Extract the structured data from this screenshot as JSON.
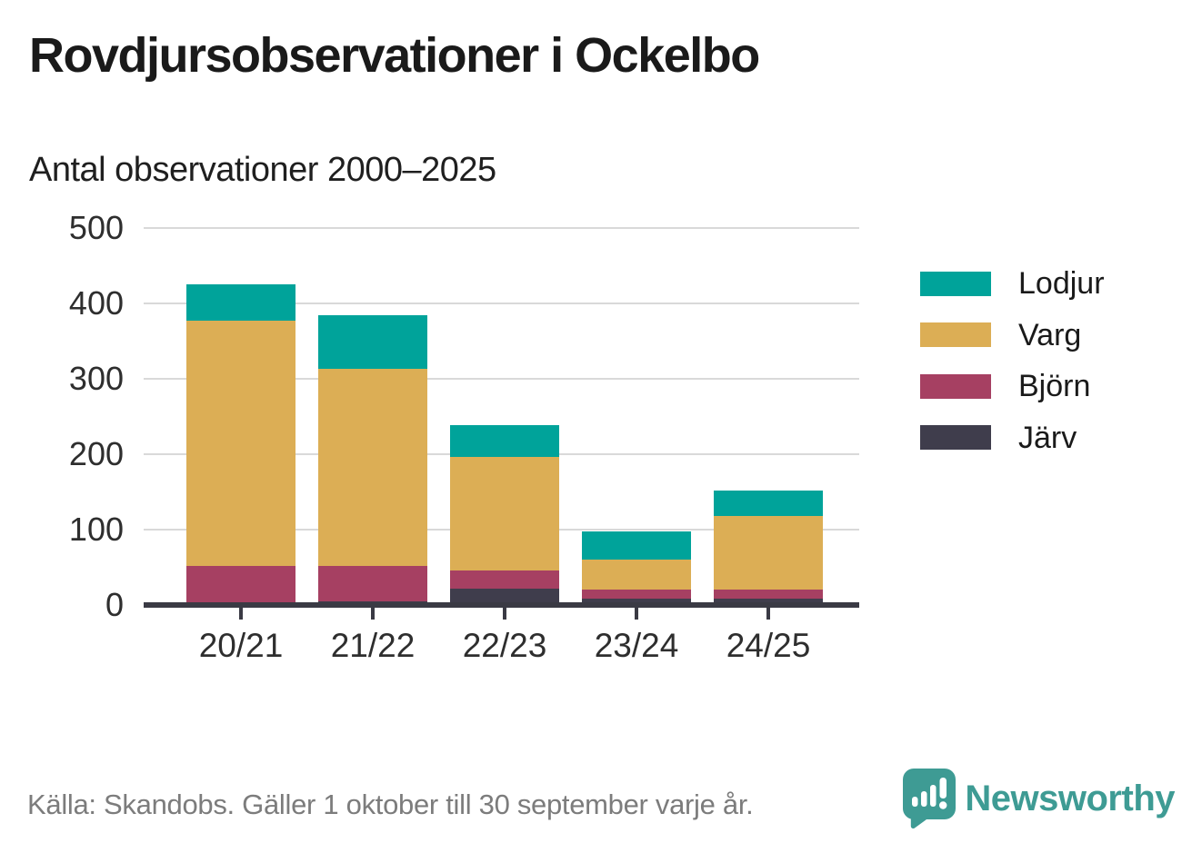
{
  "title": "Rovdjursobservationer i Ockelbo",
  "subtitle": "Antal observationer 2000–2025",
  "footer": {
    "source": "Källa: Skandobs. Gäller 1 oktober till 30 september varje år.",
    "brand": "Newsworthy",
    "brand_color": "#3e9b94",
    "logo_icon": "bar-chart-speech-bubble-icon"
  },
  "colors": {
    "lodjur": "#00a39a",
    "varg": "#dcae55",
    "bjorn": "#a64062",
    "jarv": "#3f3d4c",
    "axis": "#3a3a44",
    "grid": "#d9d9d9",
    "text": "#1a1a1a",
    "muted_text": "#7c7c7c"
  },
  "chart_data": {
    "type": "bar",
    "stacked": true,
    "title": "Rovdjursobservationer i Ockelbo",
    "subtitle": "Antal observationer 2000–2025",
    "categories": [
      "20/21",
      "21/22",
      "22/23",
      "23/24",
      "24/25"
    ],
    "series": [
      {
        "name": "Järv",
        "color": "#3f3d4c",
        "values": [
          0,
          5,
          22,
          8,
          8
        ]
      },
      {
        "name": "Björn",
        "color": "#a64062",
        "values": [
          52,
          47,
          24,
          12,
          12
        ]
      },
      {
        "name": "Varg",
        "color": "#dcae55",
        "values": [
          325,
          261,
          150,
          40,
          98
        ]
      },
      {
        "name": "Lodjur",
        "color": "#00a39a",
        "values": [
          48,
          71,
          42,
          37,
          34
        ]
      }
    ],
    "totals": [
      425,
      384,
      238,
      97,
      152
    ],
    "legend_order": [
      "Lodjur",
      "Varg",
      "Björn",
      "Järv"
    ],
    "legend_position": "right",
    "xlabel": "",
    "ylabel": "",
    "ylim": [
      0,
      500
    ],
    "yticks": [
      0,
      100,
      200,
      300,
      400,
      500
    ],
    "grid": true
  }
}
